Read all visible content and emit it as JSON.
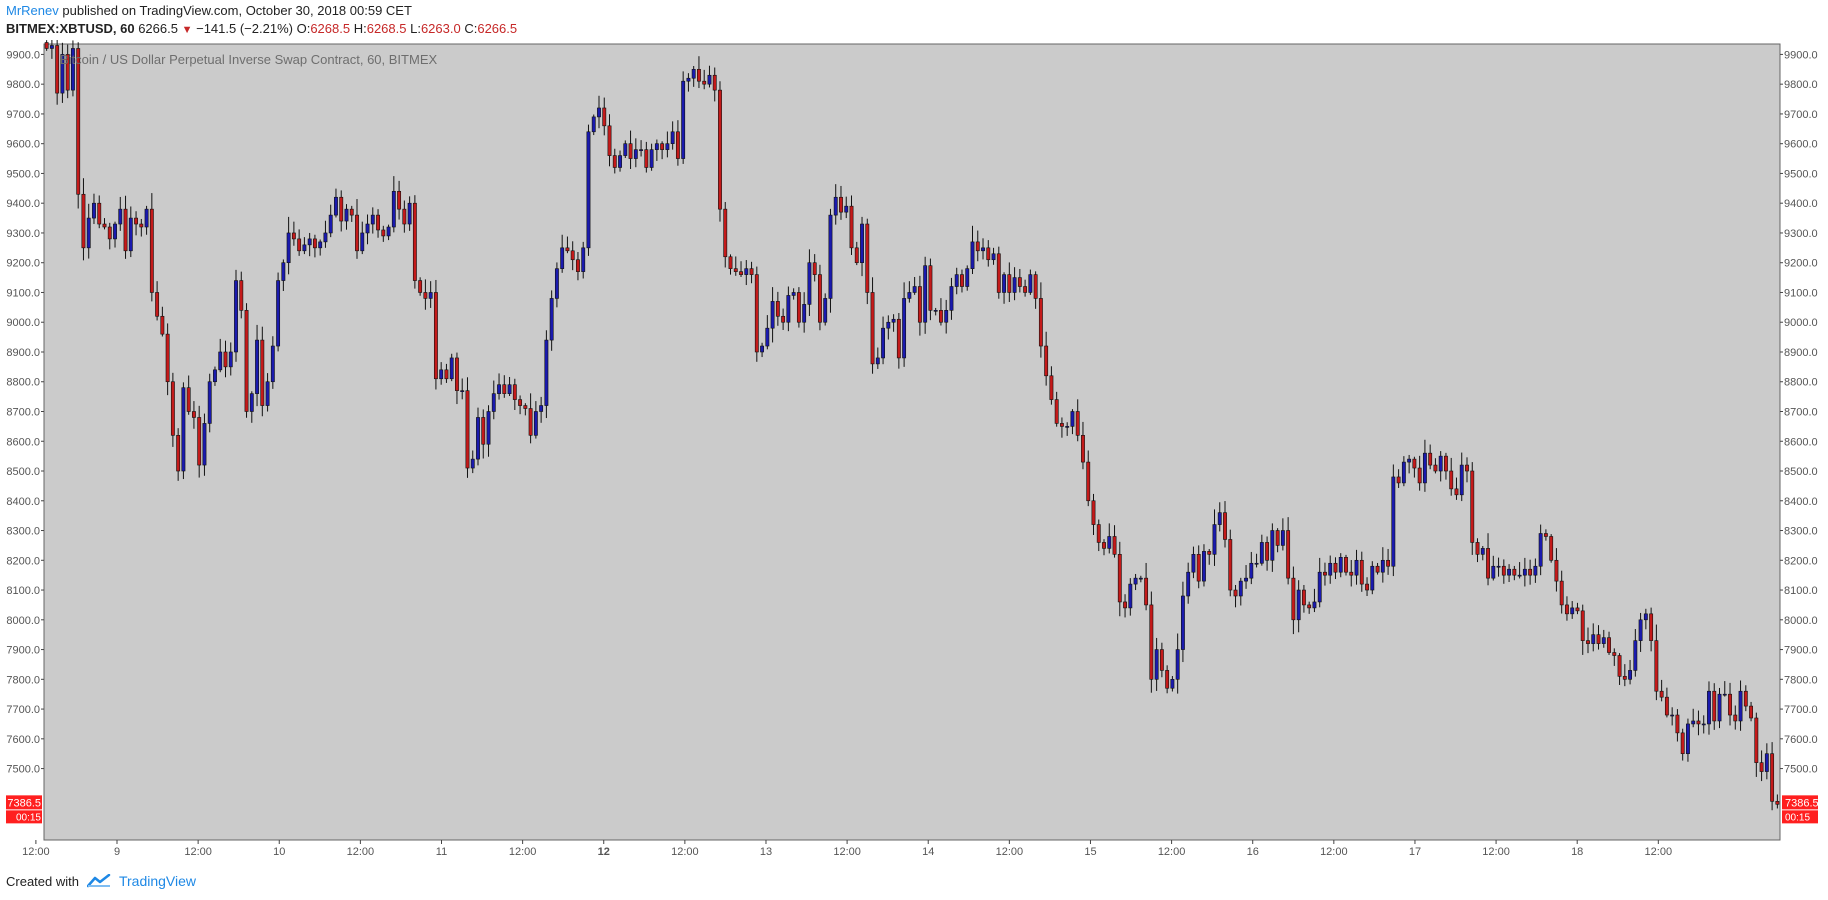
{
  "header": {
    "author": "MrRenev",
    "published_text": "published on TradingView.com, October 30, 2018 00:59 CET",
    "symbol": "BITMEX:XBTUSD, 60",
    "last": "6266.5",
    "change": "−141.5 (−2.21%)",
    "o_label": "O:",
    "o_value": "6268.5",
    "h_label": "H:",
    "h_value": "6268.5",
    "l_label": "L:",
    "l_value": "6263.0",
    "c_label": "C:",
    "c_value": "6266.5"
  },
  "footer": {
    "created_with": "Created with",
    "brand": "TradingView"
  },
  "colors": {
    "up": "#1a1aae",
    "down": "#c41a1a",
    "plot_bg": "#cbcbcb",
    "badge": "#ff1f1f",
    "wick": "#111111"
  },
  "icons": {
    "footer_logo": "tradingview-logo-icon"
  },
  "chart_data": {
    "type": "candlestick",
    "title": "Bitcoin / US Dollar Perpetual Inverse Swap Contract, 60, BITMEX",
    "ylim": [
      7260,
      9935
    ],
    "yticks": [
      7500,
      7600,
      7700,
      7800,
      7900,
      8000,
      8100,
      8200,
      8300,
      8400,
      8500,
      8600,
      8700,
      8800,
      8900,
      9000,
      9100,
      9200,
      9300,
      9400,
      9500,
      9600,
      9700,
      9800,
      9900
    ],
    "ytick_labels": [
      "7500.0",
      "7600.0",
      "7700.0",
      "7800.0",
      "7900.0",
      "8000.0",
      "8100.0",
      "8200.0",
      "8300.0",
      "8400.0",
      "8500.0",
      "8600.0",
      "8700.0",
      "8800.0",
      "8900.0",
      "9000.0",
      "9100.0",
      "9200.0",
      "9300.0",
      "9400.0",
      "9500.0",
      "9600.0",
      "9700.0",
      "9800.0",
      "9900.0"
    ],
    "xlim": [
      8.55,
      19.25
    ],
    "x_ticks": [
      {
        "label": "12:00",
        "pos": 8.5
      },
      {
        "label": "9",
        "pos": 9
      },
      {
        "label": "12:00",
        "pos": 9.5
      },
      {
        "label": "10",
        "pos": 10
      },
      {
        "label": "12:00",
        "pos": 10.5
      },
      {
        "label": "11",
        "pos": 11
      },
      {
        "label": "12:00",
        "pos": 11.5
      },
      {
        "label": "12",
        "pos": 12,
        "bold": true
      },
      {
        "label": "12:00",
        "pos": 12.5
      },
      {
        "label": "13",
        "pos": 13
      },
      {
        "label": "12:00",
        "pos": 13.5
      },
      {
        "label": "14",
        "pos": 14
      },
      {
        "label": "12:00",
        "pos": 14.5
      },
      {
        "label": "15",
        "pos": 15
      },
      {
        "label": "12:00",
        "pos": 15.5
      },
      {
        "label": "16",
        "pos": 16
      },
      {
        "label": "12:00",
        "pos": 16.5
      },
      {
        "label": "17",
        "pos": 17
      },
      {
        "label": "12:00",
        "pos": 17.5
      },
      {
        "label": "18",
        "pos": 18
      },
      {
        "label": "12:00",
        "pos": 18.5
      }
    ],
    "last_price_label": "7386.5",
    "last_price_value": 7386.5,
    "countdown_label": "00:15",
    "start_price": 9940,
    "closes": [
      9920,
      9930,
      9770,
      9900,
      9780,
      9920,
      9430,
      9250,
      9350,
      9400,
      9330,
      9320,
      9280,
      9330,
      9380,
      9240,
      9350,
      9330,
      9320,
      9380,
      9100,
      9020,
      8960,
      8800,
      8620,
      8500,
      8780,
      8700,
      8680,
      8520,
      8660,
      8800,
      8840,
      8900,
      8850,
      8900,
      9140,
      9040,
      8700,
      8760,
      8940,
      8720,
      8800,
      8920,
      9140,
      9200,
      9300,
      9280,
      9240,
      9260,
      9280,
      9250,
      9270,
      9300,
      9360,
      9420,
      9340,
      9380,
      9360,
      9240,
      9300,
      9330,
      9360,
      9310,
      9290,
      9320,
      9440,
      9380,
      9330,
      9400,
      9140,
      9100,
      9080,
      9100,
      8810,
      8840,
      8810,
      8880,
      8770,
      8770,
      8510,
      8540,
      8680,
      8590,
      8700,
      8760,
      8790,
      8760,
      8790,
      8740,
      8720,
      8710,
      8620,
      8700,
      8720,
      8940,
      9080,
      9180,
      9250,
      9240,
      9210,
      9170,
      9250,
      9640,
      9690,
      9720,
      9660,
      9560,
      9520,
      9560,
      9600,
      9550,
      9580,
      9580,
      9520,
      9580,
      9600,
      9580,
      9600,
      9640,
      9550,
      9810,
      9820,
      9850,
      9810,
      9800,
      9830,
      9780,
      9380,
      9220,
      9180,
      9170,
      9160,
      9180,
      9160,
      8900,
      8920,
      8980,
      9070,
      9020,
      9000,
      9090,
      9100,
      9000,
      9060,
      9200,
      9160,
      9000,
      9080,
      9360,
      9420,
      9370,
      9390,
      9250,
      9200,
      9330,
      9100,
      8860,
      8880,
      8980,
      9000,
      9010,
      8880,
      9080,
      9100,
      9120,
      9000,
      9190,
      9040,
      9040,
      9000,
      9040,
      9120,
      9160,
      9120,
      9180,
      9270,
      9240,
      9250,
      9210,
      9230,
      9100,
      9160,
      9100,
      9150,
      9120,
      9100,
      9160,
      9080,
      8920,
      8820,
      8740,
      8660,
      8650,
      8650,
      8700,
      8620,
      8530,
      8400,
      8320,
      8260,
      8240,
      8280,
      8220,
      8060,
      8040,
      8120,
      8140,
      8140,
      8050,
      7800,
      7900,
      7830,
      7770,
      7800,
      7900,
      8080,
      8160,
      8220,
      8130,
      8230,
      8220,
      8320,
      8360,
      8270,
      8100,
      8080,
      8130,
      8140,
      8190,
      8190,
      8260,
      8200,
      8300,
      8250,
      8300,
      8140,
      8000,
      8100,
      8050,
      8040,
      8060,
      8160,
      8150,
      8190,
      8160,
      8210,
      8160,
      8150,
      8200,
      8120,
      8100,
      8180,
      8160,
      8200,
      8180,
      8480,
      8460,
      8530,
      8540,
      8510,
      8460,
      8560,
      8520,
      8500,
      8550,
      8500,
      8440,
      8420,
      8520,
      8500,
      8260,
      8220,
      8240,
      8140,
      8180,
      8180,
      8150,
      8170,
      8150,
      8150,
      8170,
      8150,
      8180,
      8290,
      8280,
      8200,
      8130,
      8050,
      8020,
      8040,
      8030,
      7930,
      7920,
      7950,
      7920,
      7940,
      7890,
      7880,
      7810,
      7800,
      7830,
      7930,
      8000,
      8020,
      7930,
      7760,
      7740,
      7680,
      7680,
      7620,
      7550,
      7650,
      7660,
      7650,
      7650,
      7760,
      7660,
      7750,
      7750,
      7680,
      7660,
      7760,
      7710,
      7670,
      7520,
      7490,
      7550,
      7390,
      7380
    ]
  }
}
